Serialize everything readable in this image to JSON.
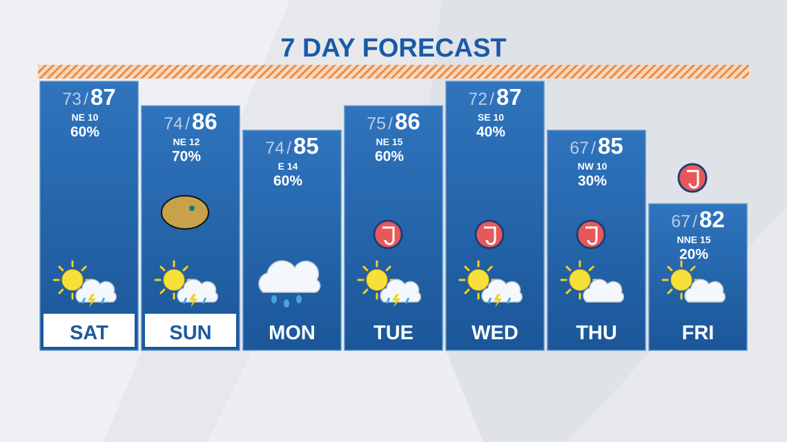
{
  "title": "7 DAY FORECAST",
  "days": [
    {
      "name": "SAT",
      "low": "73",
      "high": "87",
      "wind": "NE 10",
      "precip": "60%"
    },
    {
      "name": "SUN",
      "low": "74",
      "high": "86",
      "wind": "NE 12",
      "precip": "70%"
    },
    {
      "name": "MON",
      "low": "74",
      "high": "85",
      "wind": "E 14",
      "precip": "60%"
    },
    {
      "name": "TUE",
      "low": "75",
      "high": "86",
      "wind": "NE 15",
      "precip": "60%"
    },
    {
      "name": "WED",
      "low": "72",
      "high": "87",
      "wind": "SE 10",
      "precip": "40%"
    },
    {
      "name": "THU",
      "low": "67",
      "high": "85",
      "wind": "NW 10",
      "precip": "30%"
    },
    {
      "name": "FRI",
      "low": "67",
      "high": "82",
      "wind": "NNE 15",
      "precip": "20%"
    }
  ]
}
